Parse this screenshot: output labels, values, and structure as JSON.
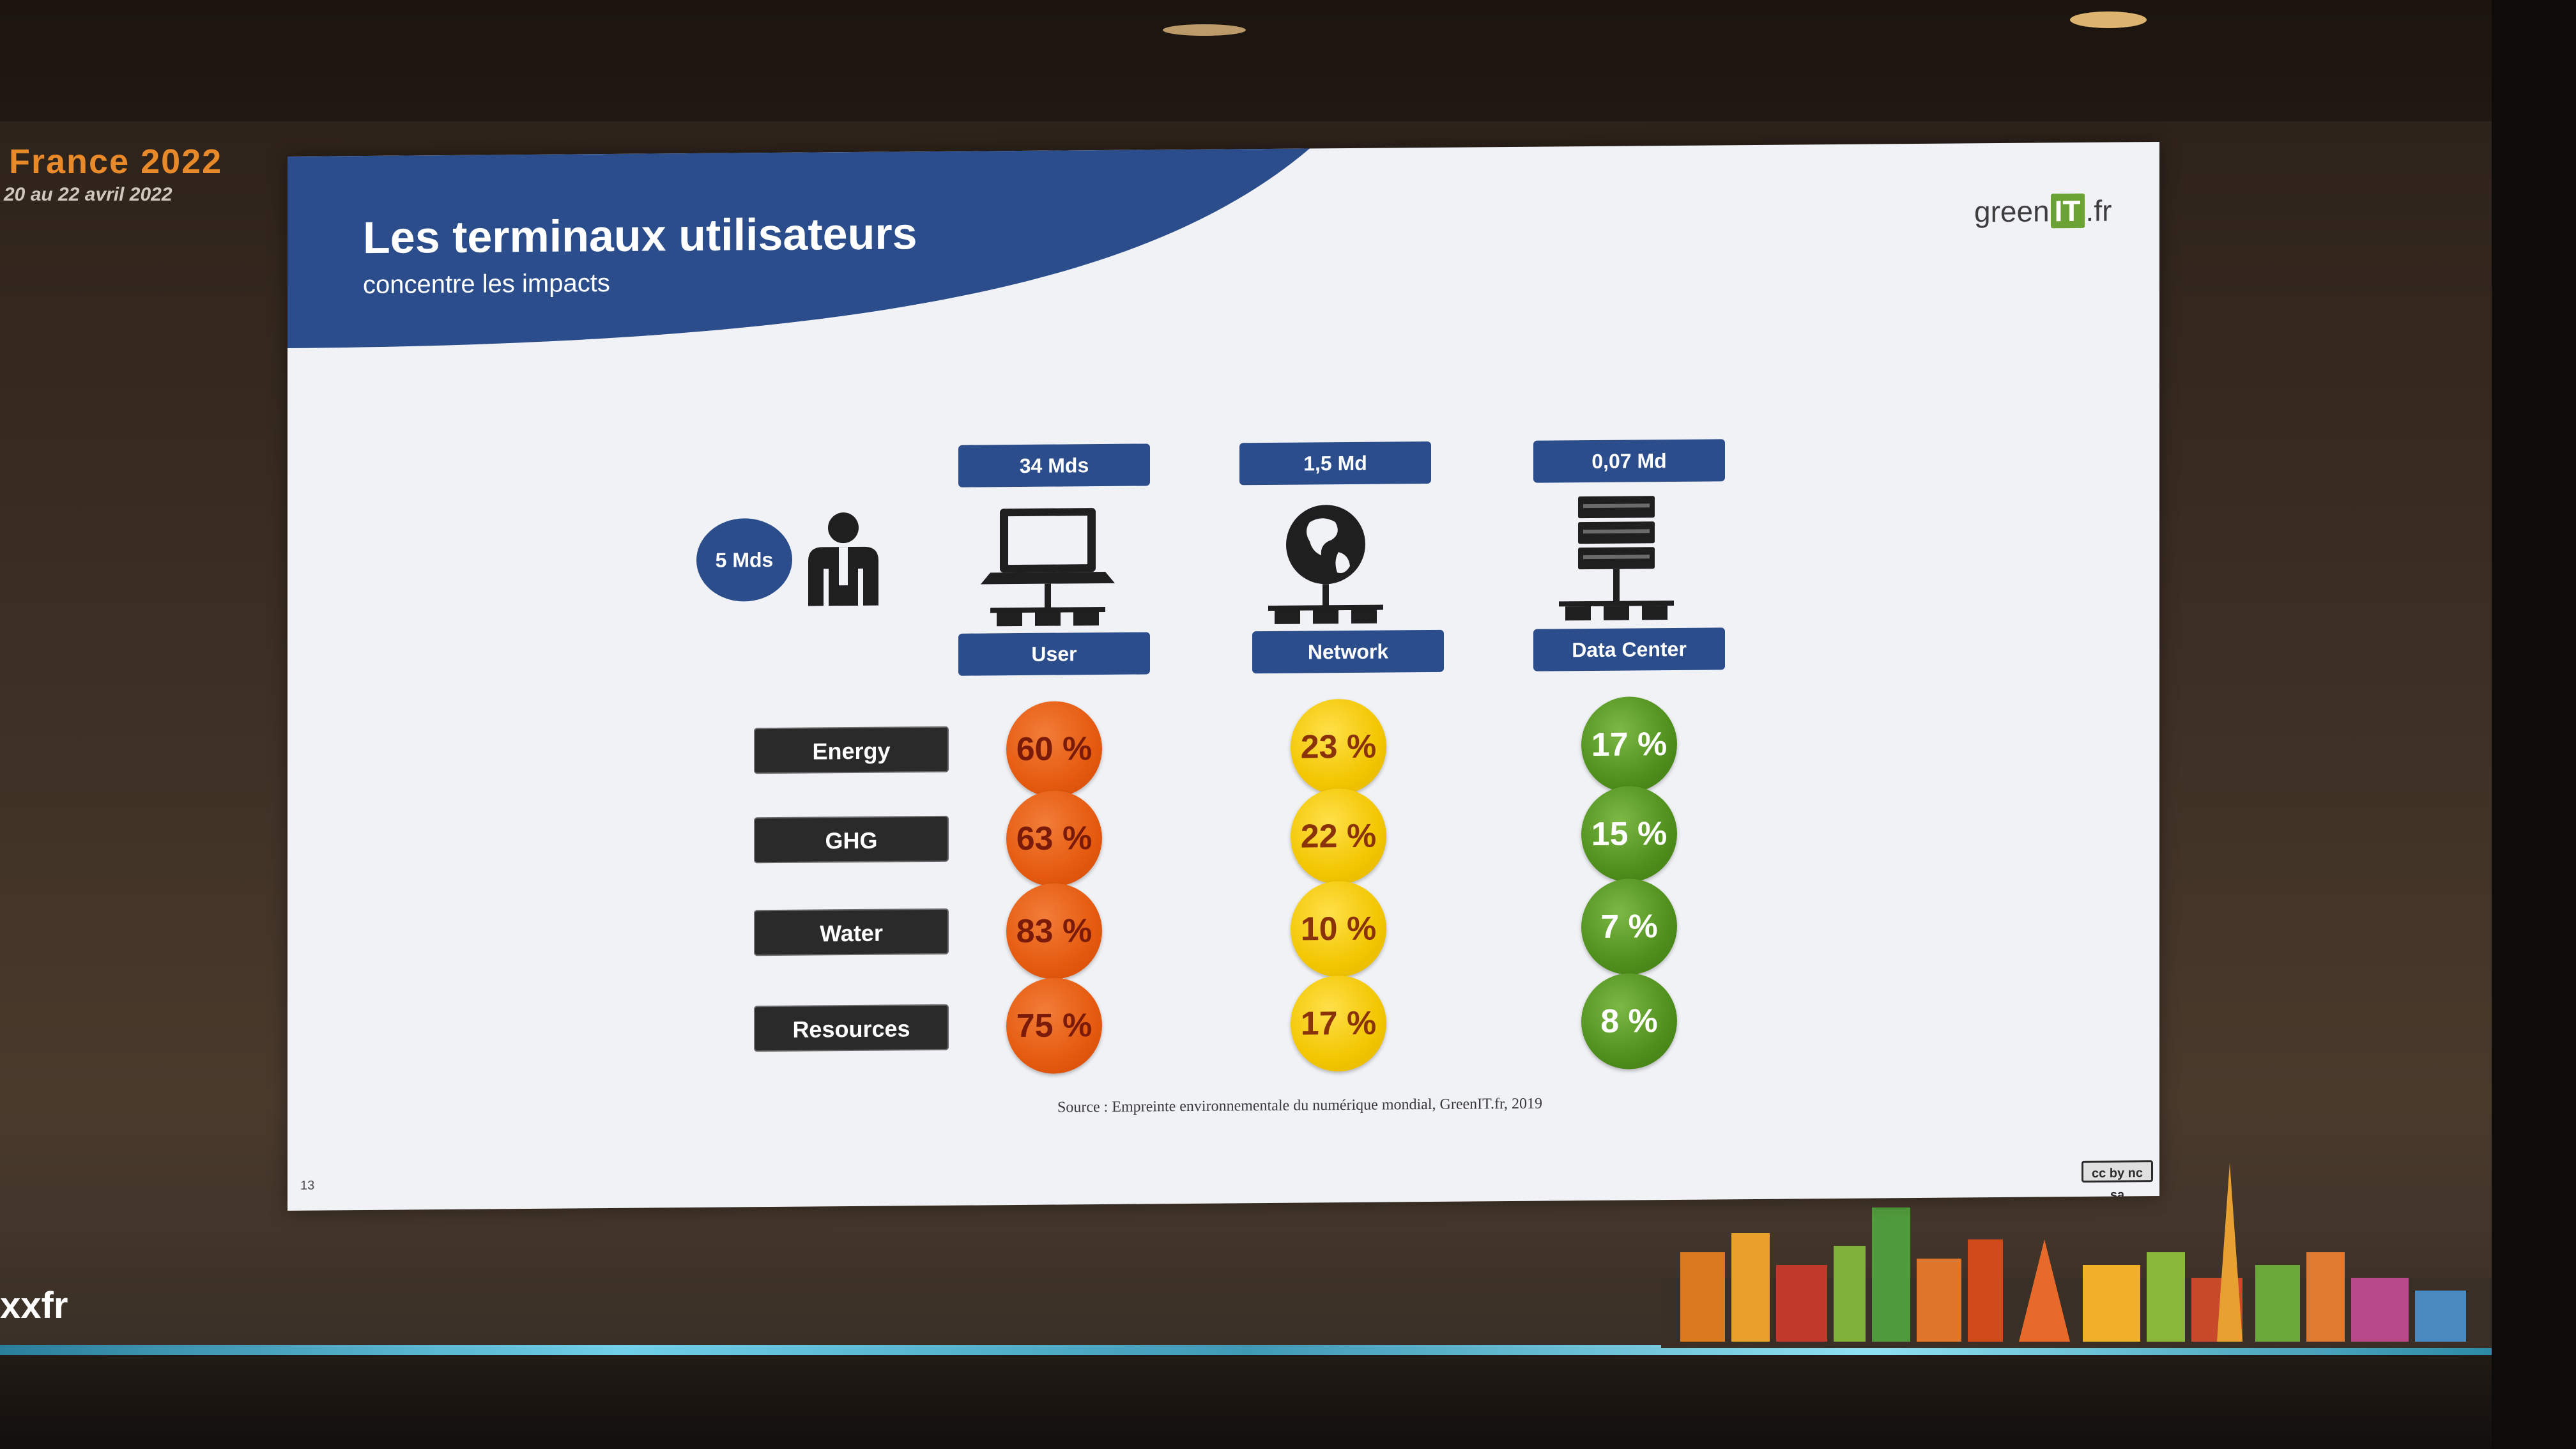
{
  "event": {
    "name": "France 2022",
    "dates": "20 au 22 avril 2022",
    "handle": "xxfr"
  },
  "slide": {
    "title": "Les terminaux utilisateurs",
    "subtitle": "concentre les impacts",
    "brand": {
      "prefix": "green",
      "highlight": "IT",
      "suffix": ".fr"
    },
    "users": {
      "count": "5 Mds"
    },
    "tiers": [
      {
        "count": "34 Mds",
        "label": "User",
        "icon": "laptop-icon"
      },
      {
        "count": "1,5 Md",
        "label": "Network",
        "icon": "globe-icon"
      },
      {
        "count": "0,07 Md",
        "label": "Data Center",
        "icon": "server-rack-icon"
      }
    ],
    "rows": [
      {
        "label": "Energy",
        "values": [
          "60 %",
          "23 %",
          "17 %"
        ]
      },
      {
        "label": "GHG",
        "values": [
          "63 %",
          "22 %",
          "15 %"
        ]
      },
      {
        "label": "Water",
        "values": [
          "83 %",
          "10 %",
          "7 %"
        ]
      },
      {
        "label": "Resources",
        "values": [
          "75 %",
          "17 %",
          "8 %"
        ]
      }
    ],
    "source": "Source : Empreinte environnementale du numérique mondial, GreenIT.fr, 2019",
    "page_number": "13",
    "license_badge": "cc by nc sa"
  },
  "colors": {
    "banner": "#2b4d8c",
    "user_circle": "#e55a0f",
    "network_circle": "#f2c600",
    "datacenter_circle": "#4f8f1c",
    "row_label_bg": "#2a2a2a"
  }
}
